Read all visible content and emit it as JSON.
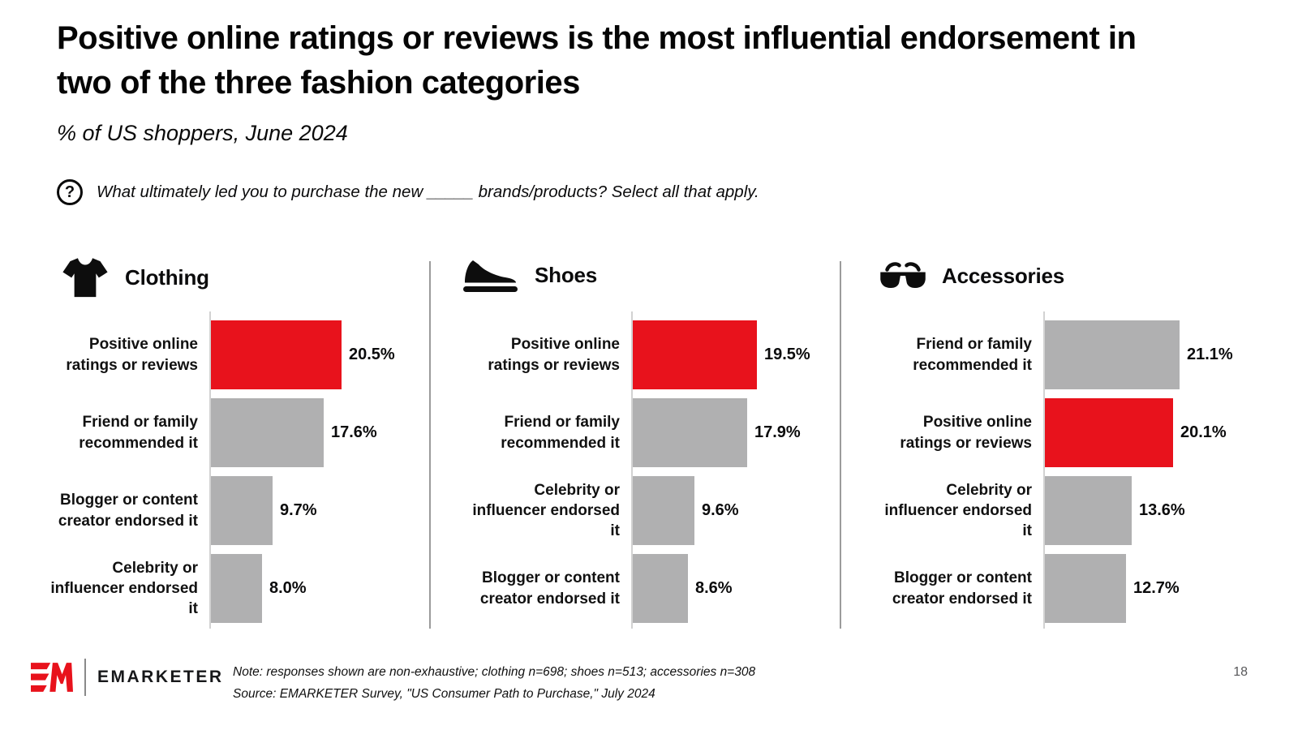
{
  "colors": {
    "highlight_red": "#e8121c",
    "bar_gray": "#b0b0b1",
    "divider_gray": "#9b9b9b",
    "axis_line_gray": "#d2d2d2",
    "text_black": "#0b0b0c",
    "page_number_gray": "#58585a"
  },
  "chart_data": {
    "type": "bar",
    "orientation": "horizontal",
    "unit": "%",
    "value_labels": "at bar end",
    "grid": false,
    "axis_range": [
      0,
      22
    ],
    "title": "Positive online ratings or reviews is the most influential endorsement in two of the three fashion categories",
    "subtitle": "% of US shoppers, June 2024",
    "question": "What ultimately led you to purchase the new _____ brands/products? Select all that apply.",
    "note": "Note: responses shown are non-exhaustive; clothing n=698; shoes n=513; accessories n=308",
    "source": "Source: EMARKETER Survey, \"US Consumer Path to Purchase,\" July 2024",
    "panels": [
      {
        "category": "Clothing",
        "icon": "tshirt-icon",
        "rows": [
          {
            "label": "Positive online ratings or reviews",
            "value": 20.5,
            "display": "20.5%",
            "highlight": true
          },
          {
            "label": "Friend or family recommended it",
            "value": 17.6,
            "display": "17.6%",
            "highlight": false
          },
          {
            "label": "Blogger or content creator endorsed it",
            "value": 9.7,
            "display": "9.7%",
            "highlight": false
          },
          {
            "label": "Celebrity or influencer endorsed it",
            "value": 8.0,
            "display": "8.0%",
            "highlight": false
          }
        ]
      },
      {
        "category": "Shoes",
        "icon": "sneaker-icon",
        "rows": [
          {
            "label": "Positive online ratings or reviews",
            "value": 19.5,
            "display": "19.5%",
            "highlight": true
          },
          {
            "label": "Friend or family recommended it",
            "value": 17.9,
            "display": "17.9%",
            "highlight": false
          },
          {
            "label": "Celebrity or influencer endorsed it",
            "value": 9.6,
            "display": "9.6%",
            "highlight": false
          },
          {
            "label": "Blogger or content creator endorsed it",
            "value": 8.6,
            "display": "8.6%",
            "highlight": false
          }
        ]
      },
      {
        "category": "Accessories",
        "icon": "sunglasses-icon",
        "rows": [
          {
            "label": "Friend or family recommended it",
            "value": 21.1,
            "display": "21.1%",
            "highlight": false
          },
          {
            "label": "Positive online ratings or reviews",
            "value": 20.1,
            "display": "20.1%",
            "highlight": true
          },
          {
            "label": "Celebrity or influencer endorsed it",
            "value": 13.6,
            "display": "13.6%",
            "highlight": false
          },
          {
            "label": "Blogger or content creator endorsed it",
            "value": 12.7,
            "display": "12.7%",
            "highlight": false
          }
        ]
      }
    ]
  },
  "footer": {
    "page_number": "18",
    "logo": {
      "mark": "EM",
      "name": "EMARKETER"
    }
  }
}
